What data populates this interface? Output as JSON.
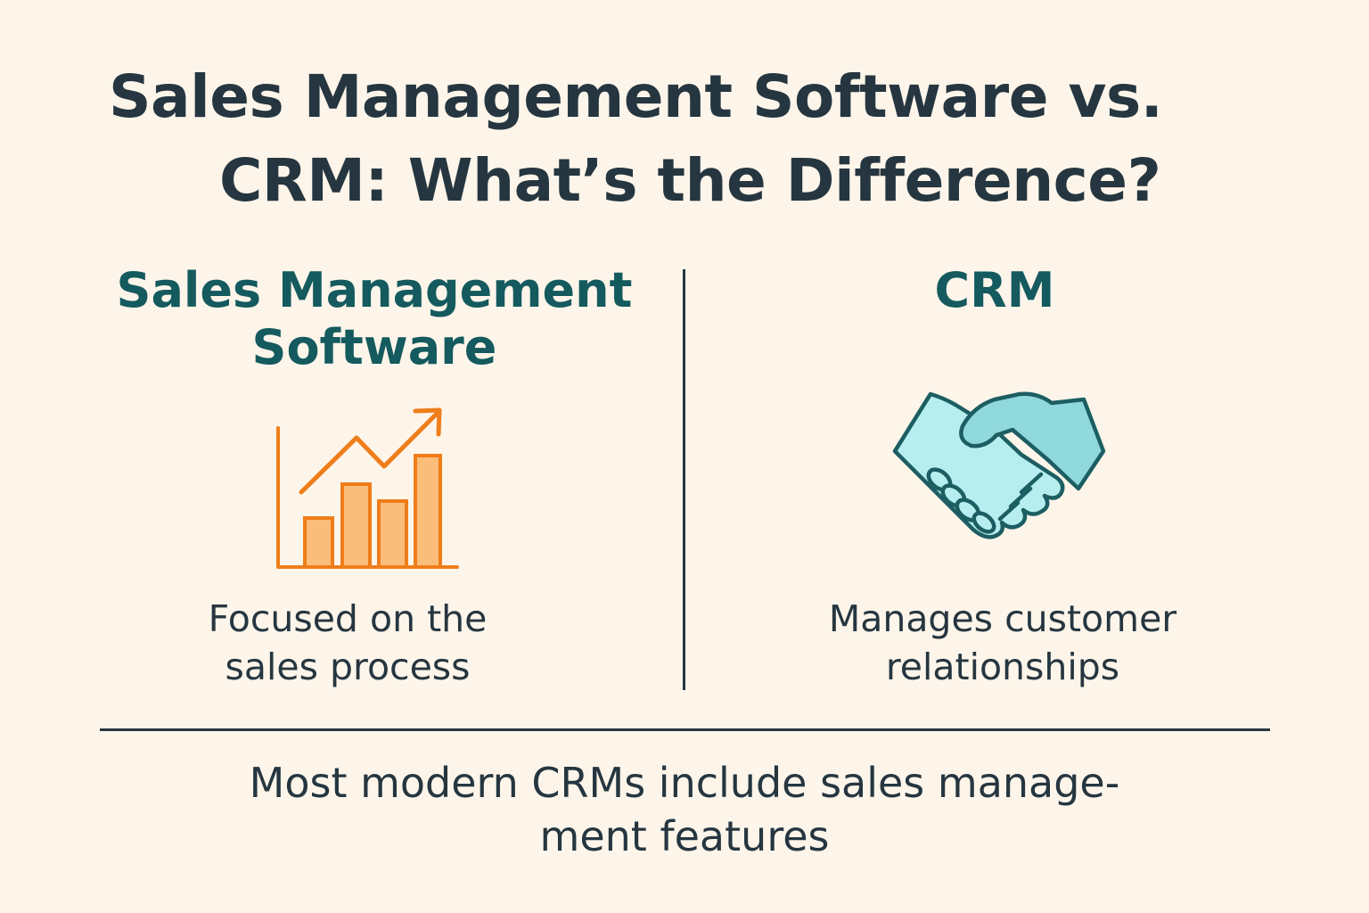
{
  "title": {
    "line1": "Sales Management Software vs.",
    "line2": "CRM: What’s the Difference?"
  },
  "left": {
    "heading_line1": "Sales Management",
    "heading_line2": "Software",
    "icon": "bar-chart-growth-icon",
    "description_line1": "Focused on the",
    "description_line2": "sales process"
  },
  "right": {
    "heading": "CRM",
    "icon": "handshake-icon",
    "description_line1": "Manages customer",
    "description_line2": "relationships"
  },
  "footer": {
    "line1": "Most modern CRMs include sales manage-",
    "line2": "ment features"
  },
  "colors": {
    "background": "#fdf5ea",
    "title_text": "#263640",
    "heading_teal": "#145a5e",
    "chart_orange": "#ef7d1a",
    "chart_fill": "#fbbd7a",
    "handshake_fill": "#b6eef0",
    "handshake_stroke": "#1c5e62"
  }
}
